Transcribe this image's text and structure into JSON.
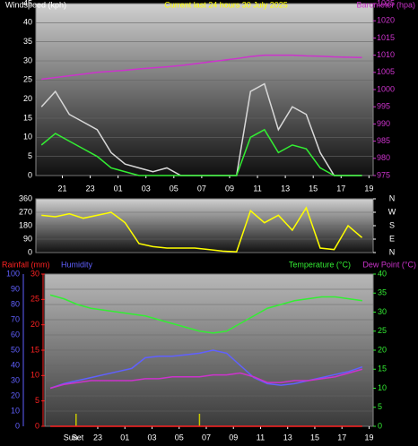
{
  "chart_data": [
    {
      "type": "line",
      "title": "Current last 24 hours 30 July 2025",
      "ylabel": "Windspeed (kph)",
      "y2label": "Barometer (hpa)",
      "ycolor": "#ffffff",
      "y2color": "#cc33cc",
      "titlecolor": "#ffff00",
      "xlim": [
        -1.9,
        22.3
      ],
      "xticks": [
        {
          "value": 0,
          "label": "21"
        },
        {
          "value": 2,
          "label": "23"
        },
        {
          "value": 4,
          "label": "01"
        },
        {
          "value": 6,
          "label": "03"
        },
        {
          "value": 8,
          "label": "05"
        },
        {
          "value": 10,
          "label": "07"
        },
        {
          "value": 12,
          "label": "09"
        },
        {
          "value": 14,
          "label": "11"
        },
        {
          "value": 16,
          "label": "13"
        },
        {
          "value": 18,
          "label": "15"
        },
        {
          "value": 20,
          "label": "17"
        },
        {
          "value": 22,
          "label": "19"
        }
      ],
      "ylim": [
        0,
        45
      ],
      "yticks": [
        0,
        5,
        10,
        15,
        20,
        25,
        30,
        35,
        40,
        45
      ],
      "y2lim": [
        975,
        1025
      ],
      "y2ticks": [
        975,
        980,
        985,
        990,
        995,
        1000,
        1005,
        1010,
        1015,
        1020,
        1025
      ],
      "grid": true,
      "x": [
        -1.5,
        -0.5,
        0.5,
        1.5,
        2.5,
        3.5,
        4.5,
        5.5,
        6.5,
        7.5,
        8.5,
        9.5,
        10.5,
        11.5,
        12.5,
        13.5,
        14.5,
        15.5,
        16.5,
        17.5,
        18.5,
        19.5,
        20.5,
        21.5
      ],
      "series": [
        {
          "color": "#d8d8d8",
          "values": [
            18,
            22,
            16,
            14,
            12,
            6,
            3,
            2,
            1,
            2,
            0,
            0,
            0,
            0,
            0,
            22,
            24,
            12,
            18,
            16,
            6,
            0,
            0,
            0
          ]
        },
        {
          "color": "#33ee33",
          "values": [
            8,
            11,
            9,
            7,
            5,
            2,
            1,
            0,
            0,
            0,
            0,
            0,
            0,
            0,
            0,
            10,
            12,
            6,
            8,
            7,
            2,
            0,
            0,
            0
          ]
        },
        {
          "color": "#cc33cc",
          "axis": "y2",
          "values": [
            1003,
            1003.5,
            1004,
            1004.5,
            1005,
            1005.3,
            1005.6,
            1006,
            1006.3,
            1006.6,
            1007,
            1007.5,
            1008,
            1008.5,
            1009,
            1009.6,
            1010,
            1010,
            1010,
            1009.8,
            1009.7,
            1009.5,
            1009.4,
            1009.3
          ]
        }
      ]
    },
    {
      "type": "line",
      "ycolor": "#ffffff",
      "y2color": "#ffffff",
      "xlim": [
        -1.9,
        22.3
      ],
      "ylim": [
        0,
        360
      ],
      "yticks": [
        0,
        90,
        180,
        270,
        360
      ],
      "y2lim": [
        0,
        360
      ],
      "y2ticks": [
        {
          "value": 360,
          "label": "N"
        },
        {
          "value": 270,
          "label": "W"
        },
        {
          "value": 180,
          "label": "S"
        },
        {
          "value": 90,
          "label": "E"
        },
        {
          "value": 0,
          "label": "N"
        }
      ],
      "grid": true,
      "x": [
        -1.5,
        -0.5,
        0.5,
        1.5,
        2.5,
        3.5,
        4.5,
        5.5,
        6.5,
        7.5,
        8.5,
        9.5,
        10.5,
        11.5,
        12.5,
        13.5,
        14.5,
        15.5,
        16.5,
        17.5,
        18.5,
        19.5,
        20.5,
        21.5
      ],
      "series": [
        {
          "color": "#ffff00",
          "values": [
            250,
            240,
            260,
            230,
            250,
            270,
            200,
            60,
            40,
            30,
            30,
            30,
            20,
            10,
            5,
            280,
            200,
            250,
            150,
            300,
            30,
            20,
            180,
            100
          ]
        }
      ]
    },
    {
      "type": "line",
      "ycolor": "#6060ff",
      "y2color": "#33ee33",
      "y3color": "#ff2222",
      "xlim": [
        -1.9,
        22.3
      ],
      "xticks": [
        {
          "value": 2,
          "label": "23"
        },
        {
          "value": 4,
          "label": "01"
        },
        {
          "value": 6,
          "label": "03"
        },
        {
          "value": 8,
          "label": "05"
        },
        {
          "value": 10,
          "label": "07"
        },
        {
          "value": 12,
          "label": "09"
        },
        {
          "value": 14,
          "label": "11"
        },
        {
          "value": 16,
          "label": "13"
        },
        {
          "value": 18,
          "label": "15"
        },
        {
          "value": 20,
          "label": "17"
        },
        {
          "value": 22,
          "label": "19"
        }
      ],
      "ylim": [
        0,
        100
      ],
      "yticks": [
        0,
        10,
        20,
        30,
        40,
        50,
        60,
        70,
        80,
        90,
        100
      ],
      "y2lim": [
        0,
        40
      ],
      "y2ticks": [
        0,
        5,
        10,
        15,
        20,
        25,
        30,
        35,
        40
      ],
      "y3lim": [
        0,
        30
      ],
      "y3ticks": [
        0,
        5,
        10,
        15,
        20,
        25,
        30
      ],
      "grid": true,
      "sun_markers": {
        "color": "#c8c800",
        "x": [
          0.4,
          9.5
        ]
      },
      "annotations": [
        "Sun",
        "Set"
      ],
      "x": [
        -1.5,
        -0.5,
        0.5,
        1.5,
        2.5,
        3.5,
        4.5,
        5.5,
        6.5,
        7.5,
        8.5,
        9.5,
        10.5,
        11.5,
        12.5,
        13.5,
        14.5,
        15.5,
        16.5,
        17.5,
        18.5,
        19.5,
        20.5,
        21.5
      ],
      "series": [
        {
          "name": "Rainfall (mm)",
          "color": "#ff2222",
          "axis": "y3",
          "values": [
            0,
            0,
            0,
            0,
            0,
            0,
            0,
            0,
            0,
            0,
            0,
            0,
            0,
            0,
            0,
            0,
            0,
            0,
            0,
            0,
            0,
            0,
            0,
            0
          ]
        },
        {
          "name": "Humidity",
          "color": "#6060ff",
          "values": [
            25,
            28,
            30,
            32,
            34,
            36,
            38,
            45,
            46,
            46,
            47,
            48,
            50,
            48,
            40,
            32,
            28,
            27,
            28,
            30,
            32,
            34,
            36,
            39
          ]
        },
        {
          "name": "Temperature (°C)",
          "color": "#33ee33",
          "axis": "y2",
          "values": [
            34.5,
            33.5,
            32,
            31,
            30.5,
            30,
            29.5,
            29,
            28,
            27,
            26,
            25,
            24.5,
            25,
            27,
            29,
            31,
            32,
            33,
            33.5,
            34,
            34,
            33.5,
            33
          ]
        },
        {
          "name": "Dew Point (°C)",
          "color": "#cc33cc",
          "axis": "y2",
          "values": [
            10,
            11,
            11.5,
            12,
            12,
            12,
            12,
            12.5,
            12.5,
            13,
            13,
            13,
            13.5,
            13.5,
            14,
            13,
            11.5,
            11.5,
            12,
            12,
            12.5,
            13,
            14,
            15
          ]
        }
      ]
    }
  ]
}
